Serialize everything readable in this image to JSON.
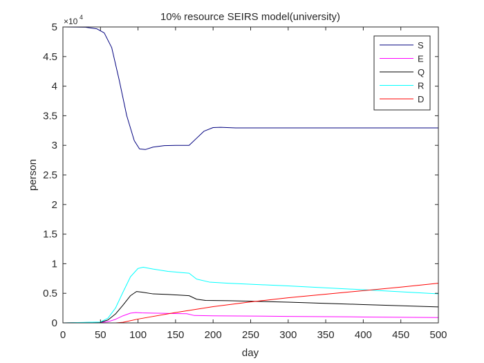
{
  "chart_data": {
    "type": "line",
    "title": "10% resource SEIRS model(university)",
    "xlabel": "day",
    "ylabel": "person",
    "y_exponent_label": "×10",
    "y_exponent_power": "4",
    "xlim": [
      0,
      500
    ],
    "ylim": [
      0,
      50000
    ],
    "x_ticks": [
      0,
      50,
      100,
      150,
      200,
      250,
      300,
      350,
      400,
      450,
      500
    ],
    "x_tick_labels": [
      "0",
      "50",
      "100",
      "150",
      "200",
      "250",
      "300",
      "350",
      "400",
      "450",
      "500"
    ],
    "y_ticks": [
      0,
      5000,
      10000,
      15000,
      20000,
      25000,
      30000,
      35000,
      40000,
      45000,
      50000
    ],
    "y_tick_labels": [
      "0",
      "0.5",
      "1",
      "1.5",
      "2",
      "2.5",
      "3",
      "3.5",
      "4",
      "4.5",
      "5"
    ],
    "grid": false,
    "legend_position": "top-right",
    "series": [
      {
        "name": "S",
        "color": "#00007F",
        "points": [
          [
            0,
            50000
          ],
          [
            30,
            49950
          ],
          [
            45,
            49700
          ],
          [
            55,
            49000
          ],
          [
            65,
            46500
          ],
          [
            75,
            41000
          ],
          [
            85,
            35000
          ],
          [
            95,
            30800
          ],
          [
            102,
            29400
          ],
          [
            110,
            29300
          ],
          [
            120,
            29700
          ],
          [
            135,
            29950
          ],
          [
            150,
            30000
          ],
          [
            168,
            30000
          ],
          [
            178,
            31200
          ],
          [
            188,
            32400
          ],
          [
            200,
            33000
          ],
          [
            210,
            33050
          ],
          [
            230,
            32950
          ],
          [
            300,
            32950
          ],
          [
            400,
            32950
          ],
          [
            500,
            32950
          ]
        ]
      },
      {
        "name": "E",
        "color": "#FF00FF",
        "points": [
          [
            0,
            0
          ],
          [
            50,
            50
          ],
          [
            60,
            200
          ],
          [
            70,
            600
          ],
          [
            80,
            1200
          ],
          [
            90,
            1650
          ],
          [
            97,
            1750
          ],
          [
            105,
            1700
          ],
          [
            120,
            1650
          ],
          [
            140,
            1600
          ],
          [
            165,
            1550
          ],
          [
            175,
            1250
          ],
          [
            200,
            1200
          ],
          [
            300,
            1100
          ],
          [
            400,
            1000
          ],
          [
            500,
            900
          ]
        ]
      },
      {
        "name": "Q",
        "color": "#000000",
        "points": [
          [
            0,
            0
          ],
          [
            50,
            100
          ],
          [
            60,
            500
          ],
          [
            70,
            1500
          ],
          [
            80,
            3000
          ],
          [
            90,
            4600
          ],
          [
            98,
            5300
          ],
          [
            105,
            5200
          ],
          [
            120,
            4900
          ],
          [
            140,
            4800
          ],
          [
            168,
            4600
          ],
          [
            178,
            4000
          ],
          [
            190,
            3800
          ],
          [
            220,
            3750
          ],
          [
            300,
            3500
          ],
          [
            400,
            3100
          ],
          [
            500,
            2700
          ]
        ]
      },
      {
        "name": "R",
        "color": "#00FFFF",
        "points": [
          [
            0,
            0
          ],
          [
            50,
            150
          ],
          [
            60,
            800
          ],
          [
            70,
            2500
          ],
          [
            80,
            5200
          ],
          [
            90,
            7800
          ],
          [
            100,
            9200
          ],
          [
            107,
            9400
          ],
          [
            120,
            9100
          ],
          [
            140,
            8700
          ],
          [
            168,
            8400
          ],
          [
            178,
            7400
          ],
          [
            195,
            6900
          ],
          [
            220,
            6700
          ],
          [
            300,
            6250
          ],
          [
            400,
            5600
          ],
          [
            500,
            4900
          ]
        ]
      },
      {
        "name": "D",
        "color": "#FF0000",
        "points": [
          [
            0,
            0
          ],
          [
            70,
            0
          ],
          [
            80,
            100
          ],
          [
            100,
            650
          ],
          [
            150,
            1750
          ],
          [
            200,
            2750
          ],
          [
            250,
            3550
          ],
          [
            300,
            4250
          ],
          [
            350,
            4850
          ],
          [
            400,
            5450
          ],
          [
            450,
            6050
          ],
          [
            500,
            6700
          ]
        ]
      }
    ]
  }
}
